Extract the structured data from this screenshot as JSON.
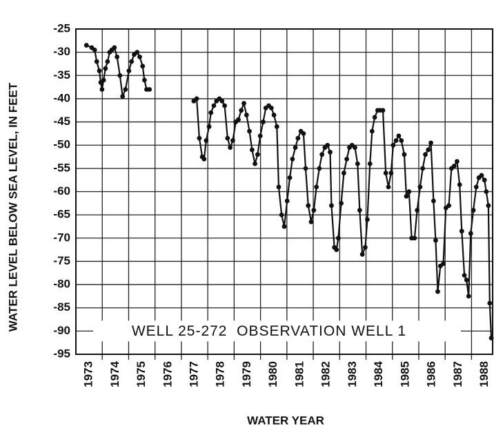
{
  "chart_data": {
    "type": "line",
    "xlabel": "WATER YEAR",
    "ylabel": "WATER LEVEL BELOW SEA LEVEL, IN FEET",
    "annotation": "WELL 25-272  OBSERVATION WELL 1",
    "xlim": [
      1972.5,
      1988.3
    ],
    "xticks": [
      1973,
      1974,
      1975,
      1976,
      1977,
      1978,
      1979,
      1980,
      1981,
      1982,
      1983,
      1984,
      1985,
      1986,
      1987,
      1988
    ],
    "ylim": [
      -95,
      -25
    ],
    "yticks": [
      -25,
      -30,
      -35,
      -40,
      -45,
      -50,
      -55,
      -60,
      -65,
      -70,
      -75,
      -80,
      -85,
      -90,
      -95
    ],
    "grid": true,
    "series": [
      {
        "name": "Water level",
        "color": "#111111",
        "x": [
          1972.9,
          1973.1,
          1973.21,
          1973.29,
          1973.39,
          1973.44,
          1973.49,
          1973.55,
          1973.62,
          1973.7,
          1973.78,
          1973.86,
          1973.96,
          1974.06,
          1974.17,
          1974.27,
          1974.38,
          1974.51,
          1974.61,
          1974.71,
          1974.82,
          1974.92,
          1975.03,
          1975.1,
          1975.18,
          1975.29,
          1976.0,
          1976.97,
          1977.08,
          1977.18,
          1977.29,
          1977.36,
          1977.44,
          1977.55,
          1977.62,
          1977.73,
          1977.83,
          1977.94,
          1978.04,
          1978.14,
          1978.25,
          1978.35,
          1978.45,
          1978.56,
          1978.66,
          1978.77,
          1978.87,
          1978.97,
          1979.08,
          1979.18,
          1979.29,
          1979.39,
          1979.49,
          1979.6,
          1979.7,
          1979.81,
          1979.91,
          1980.01,
          1980.12,
          1980.19,
          1980.3,
          1980.4,
          1980.51,
          1980.61,
          1980.71,
          1980.82,
          1980.92,
          1981.03,
          1981.13,
          1981.21,
          1981.31,
          1981.42,
          1981.52,
          1981.62,
          1981.73,
          1981.83,
          1981.94,
          1982.04,
          1982.14,
          1982.19,
          1982.3,
          1982.38,
          1982.45,
          1982.56,
          1982.66,
          1982.77,
          1982.87,
          1982.97,
          1983.08,
          1983.18,
          1983.26,
          1983.36,
          1983.47,
          1983.55,
          1983.65,
          1983.73,
          1983.83,
          1983.94,
          1984.04,
          1984.14,
          1984.25,
          1984.35,
          1984.45,
          1984.53,
          1984.64,
          1984.74,
          1984.84,
          1984.95,
          1985.03,
          1985.13,
          1985.23,
          1985.34,
          1985.44,
          1985.55,
          1985.65,
          1985.75,
          1985.86,
          1985.96,
          1986.06,
          1986.14,
          1986.22,
          1986.32,
          1986.43,
          1986.53,
          1986.64,
          1986.74,
          1986.84,
          1986.95,
          1987.05,
          1987.13,
          1987.23,
          1987.31,
          1987.39,
          1987.47,
          1987.57,
          1987.68,
          1987.78,
          1987.88,
          1987.99,
          1988.06,
          1988.14,
          1988.19,
          1988.25
        ],
        "values": [
          -28.5,
          -29,
          -29.5,
          -32,
          -34,
          -36.5,
          -38,
          -36,
          -33.5,
          -32,
          -30,
          -29.5,
          -29,
          -31,
          -35,
          -39.5,
          -38,
          -34,
          -32,
          -30.5,
          -30,
          -31,
          -33,
          -36,
          -38,
          -38,
          null,
          -40.5,
          -40,
          -48.5,
          -52.5,
          -53,
          -49,
          -46,
          -43,
          -41.5,
          -40.5,
          -40,
          -40.5,
          -41.5,
          -48.5,
          -50.5,
          -49,
          -45,
          -44.5,
          -42.5,
          -41,
          -43.5,
          -47,
          -51,
          -54,
          -52,
          -48,
          -45,
          -42,
          -41.5,
          -42,
          -43.5,
          -46,
          -59,
          -65,
          -67.5,
          -62,
          -57,
          -53,
          -50.5,
          -48.5,
          -47,
          -47.5,
          -55,
          -63,
          -66.5,
          -64,
          -59,
          -55,
          -52,
          -50.5,
          -50,
          -51.5,
          -63,
          -72,
          -72.5,
          -70,
          -62.5,
          -56,
          -53,
          -50.5,
          -50,
          -50.5,
          -54,
          -64,
          -73.5,
          -72,
          -66,
          -54,
          -47,
          -44,
          -42.5,
          -42.5,
          -42.5,
          -56,
          -59,
          -56,
          -50,
          -49,
          -48,
          -49,
          -52,
          -61,
          -60,
          -70,
          -70,
          -64,
          -59,
          -55,
          -52,
          -51,
          -49.5,
          -62,
          -70.5,
          -81.5,
          -76,
          -75.5,
          -63.5,
          -63,
          -55,
          -54.5,
          -53.5,
          -58.5,
          -68.5,
          -78,
          -79,
          -82.5,
          -69,
          -64,
          -59,
          -57,
          -56.5,
          -57.5,
          -60,
          -63,
          -84,
          -91.5
        ]
      }
    ]
  }
}
